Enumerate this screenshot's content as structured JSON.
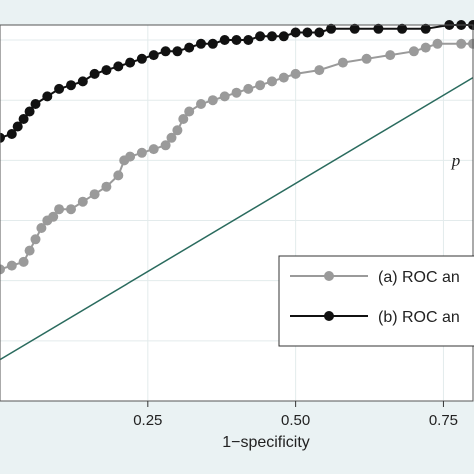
{
  "chart_data": {
    "type": "line",
    "xlabel": "1−specificity",
    "x_ticks": [
      0.25,
      0.5,
      0.75
    ],
    "x_tick_labels": [
      "0.25",
      "0.50",
      "0.75"
    ],
    "xlim": [
      0.0,
      0.8
    ],
    "ylim": [
      0.0,
      1.0
    ],
    "grid": true,
    "legend_position": "bottom-right",
    "annotation": "p",
    "colors": {
      "series_a": "#9a9a9a",
      "series_b": "#111111",
      "reference": "#2a6b5e",
      "grid": "#ffffff",
      "plot_bg": "#ffffff",
      "outer_bg": "#eaf2f3"
    },
    "series": [
      {
        "name": "(a) ROC an",
        "points": [
          [
            0.0,
            0.35
          ],
          [
            0.02,
            0.36
          ],
          [
            0.04,
            0.37
          ],
          [
            0.05,
            0.4
          ],
          [
            0.06,
            0.43
          ],
          [
            0.07,
            0.46
          ],
          [
            0.08,
            0.48
          ],
          [
            0.09,
            0.49
          ],
          [
            0.1,
            0.51
          ],
          [
            0.12,
            0.51
          ],
          [
            0.14,
            0.53
          ],
          [
            0.16,
            0.55
          ],
          [
            0.18,
            0.57
          ],
          [
            0.2,
            0.6
          ],
          [
            0.21,
            0.64
          ],
          [
            0.22,
            0.65
          ],
          [
            0.24,
            0.66
          ],
          [
            0.26,
            0.67
          ],
          [
            0.28,
            0.68
          ],
          [
            0.29,
            0.7
          ],
          [
            0.3,
            0.72
          ],
          [
            0.31,
            0.75
          ],
          [
            0.32,
            0.77
          ],
          [
            0.34,
            0.79
          ],
          [
            0.36,
            0.8
          ],
          [
            0.38,
            0.81
          ],
          [
            0.4,
            0.82
          ],
          [
            0.42,
            0.83
          ],
          [
            0.44,
            0.84
          ],
          [
            0.46,
            0.85
          ],
          [
            0.48,
            0.86
          ],
          [
            0.5,
            0.87
          ],
          [
            0.54,
            0.88
          ],
          [
            0.58,
            0.9
          ],
          [
            0.62,
            0.91
          ],
          [
            0.66,
            0.92
          ],
          [
            0.7,
            0.93
          ],
          [
            0.72,
            0.94
          ],
          [
            0.74,
            0.95
          ],
          [
            0.78,
            0.95
          ],
          [
            0.8,
            0.95
          ]
        ]
      },
      {
        "name": "(b) ROC an",
        "points": [
          [
            0.0,
            0.7
          ],
          [
            0.02,
            0.71
          ],
          [
            0.03,
            0.73
          ],
          [
            0.04,
            0.75
          ],
          [
            0.05,
            0.77
          ],
          [
            0.06,
            0.79
          ],
          [
            0.08,
            0.81
          ],
          [
            0.1,
            0.83
          ],
          [
            0.12,
            0.84
          ],
          [
            0.14,
            0.85
          ],
          [
            0.16,
            0.87
          ],
          [
            0.18,
            0.88
          ],
          [
            0.2,
            0.89
          ],
          [
            0.22,
            0.9
          ],
          [
            0.24,
            0.91
          ],
          [
            0.26,
            0.92
          ],
          [
            0.28,
            0.93
          ],
          [
            0.3,
            0.93
          ],
          [
            0.32,
            0.94
          ],
          [
            0.34,
            0.95
          ],
          [
            0.36,
            0.95
          ],
          [
            0.38,
            0.96
          ],
          [
            0.4,
            0.96
          ],
          [
            0.42,
            0.96
          ],
          [
            0.44,
            0.97
          ],
          [
            0.46,
            0.97
          ],
          [
            0.48,
            0.97
          ],
          [
            0.5,
            0.98
          ],
          [
            0.52,
            0.98
          ],
          [
            0.54,
            0.98
          ],
          [
            0.56,
            0.99
          ],
          [
            0.6,
            0.99
          ],
          [
            0.64,
            0.99
          ],
          [
            0.68,
            0.99
          ],
          [
            0.72,
            0.99
          ],
          [
            0.76,
            1.0
          ],
          [
            0.78,
            1.0
          ],
          [
            0.8,
            1.0
          ]
        ]
      }
    ],
    "reference_line": [
      [
        0.0,
        0.11
      ],
      [
        0.8,
        0.86
      ]
    ]
  }
}
